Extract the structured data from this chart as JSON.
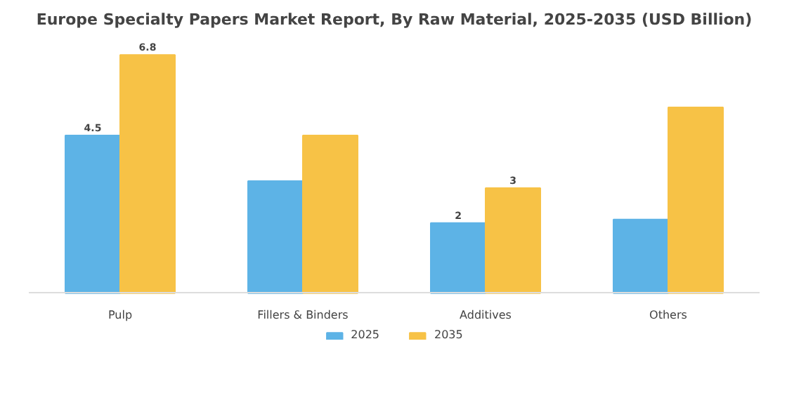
{
  "chart_data": {
    "type": "bar",
    "title": "Europe Specialty Papers Market Report, By Raw Material, 2025-2035 (USD Billion)",
    "categories": [
      "Pulp",
      "Fillers & Binders",
      "Additives",
      "Others"
    ],
    "series": [
      {
        "name": "2025",
        "color": "#5db3e6",
        "values": [
          4.5,
          3.2,
          2.0,
          2.1
        ],
        "value_labels": [
          "4.5",
          null,
          "2",
          null
        ]
      },
      {
        "name": "2035",
        "color": "#f7c246",
        "values": [
          6.8,
          4.5,
          3.0,
          5.3
        ],
        "value_labels": [
          "6.8",
          null,
          "3",
          null
        ]
      }
    ],
    "legend": "bottom"
  }
}
